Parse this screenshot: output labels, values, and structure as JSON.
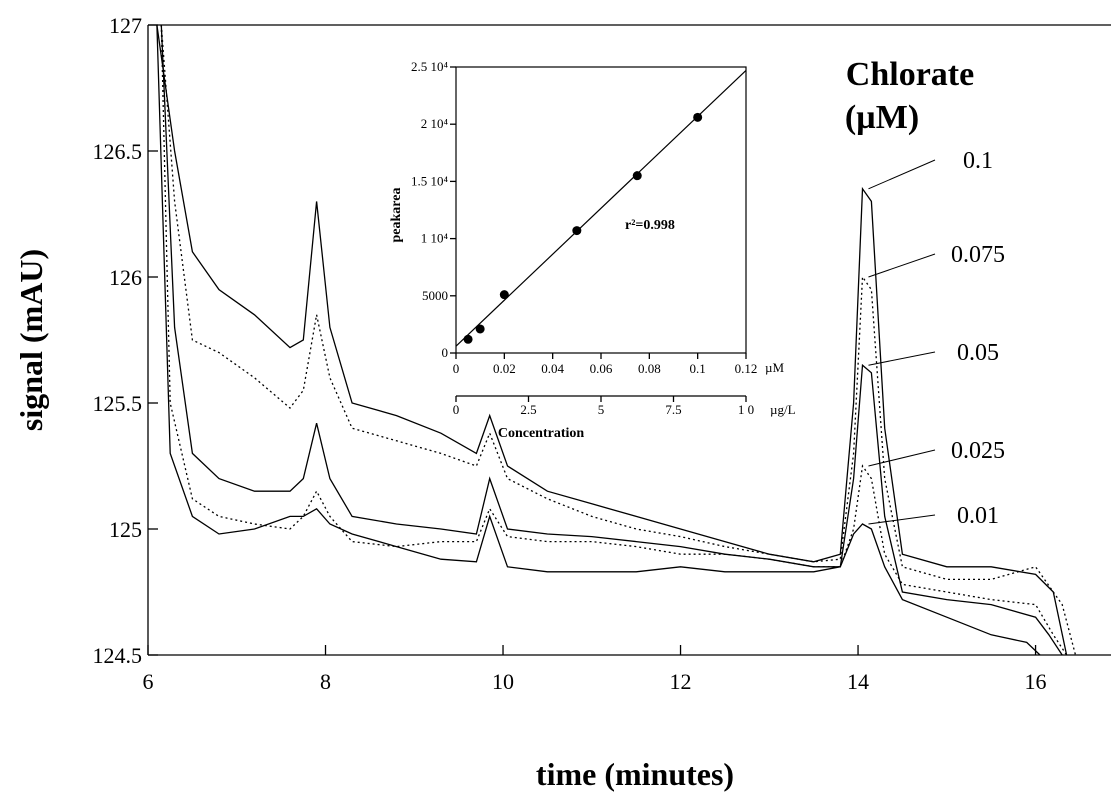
{
  "chart_data": [
    {
      "type": "line",
      "xlabel": "time (minutes)",
      "ylabel": "signal (mAU)",
      "xlim": [
        6,
        16.85
      ],
      "ylim": [
        124.5,
        127
      ],
      "x_ticks": [
        "6",
        "8",
        "10",
        "12",
        "14",
        "16"
      ],
      "y_ticks": [
        "124.5",
        "125",
        "125.5",
        "126",
        "126.5",
        "127"
      ],
      "legend_title_line1": "Chlorate",
      "legend_title_line2": "(µM)",
      "series": [
        {
          "name": "0.1",
          "style": "solid",
          "points": [
            [
              6.1,
              127
            ],
            [
              6.3,
              126.5
            ],
            [
              6.5,
              126.1
            ],
            [
              6.8,
              125.95
            ],
            [
              7.2,
              125.85
            ],
            [
              7.6,
              125.72
            ],
            [
              7.75,
              125.75
            ],
            [
              7.9,
              126.3
            ],
            [
              8.05,
              125.8
            ],
            [
              8.3,
              125.5
            ],
            [
              8.8,
              125.45
            ],
            [
              9.3,
              125.38
            ],
            [
              9.7,
              125.3
            ],
            [
              9.85,
              125.45
            ],
            [
              10.05,
              125.25
            ],
            [
              10.5,
              125.15
            ],
            [
              11,
              125.1
            ],
            [
              11.5,
              125.05
            ],
            [
              12,
              125
            ],
            [
              12.5,
              124.95
            ],
            [
              13,
              124.9
            ],
            [
              13.5,
              124.87
            ],
            [
              13.8,
              124.9
            ],
            [
              13.95,
              125.5
            ],
            [
              14.05,
              126.35
            ],
            [
              14.15,
              126.3
            ],
            [
              14.3,
              125.4
            ],
            [
              14.5,
              124.9
            ],
            [
              15,
              124.85
            ],
            [
              15.5,
              124.85
            ],
            [
              16,
              124.82
            ],
            [
              16.2,
              124.75
            ],
            [
              16.35,
              124.5
            ]
          ]
        },
        {
          "name": "0.075",
          "style": "dotted",
          "points": [
            [
              6.15,
              127
            ],
            [
              6.3,
              126.3
            ],
            [
              6.5,
              125.75
            ],
            [
              6.8,
              125.7
            ],
            [
              7.2,
              125.6
            ],
            [
              7.6,
              125.48
            ],
            [
              7.75,
              125.55
            ],
            [
              7.9,
              125.85
            ],
            [
              8.05,
              125.6
            ],
            [
              8.3,
              125.4
            ],
            [
              8.8,
              125.35
            ],
            [
              9.3,
              125.3
            ],
            [
              9.7,
              125.25
            ],
            [
              9.85,
              125.38
            ],
            [
              10.05,
              125.2
            ],
            [
              10.5,
              125.12
            ],
            [
              11,
              125.05
            ],
            [
              11.5,
              125
            ],
            [
              12,
              124.97
            ],
            [
              12.5,
              124.93
            ],
            [
              13,
              124.9
            ],
            [
              13.5,
              124.87
            ],
            [
              13.8,
              124.88
            ],
            [
              13.95,
              125.3
            ],
            [
              14.05,
              126.0
            ],
            [
              14.15,
              125.95
            ],
            [
              14.3,
              125.2
            ],
            [
              14.5,
              124.85
            ],
            [
              15,
              124.8
            ],
            [
              15.5,
              124.8
            ],
            [
              16,
              124.85
            ],
            [
              16.3,
              124.7
            ],
            [
              16.45,
              124.5
            ]
          ]
        },
        {
          "name": "0.05",
          "style": "solid",
          "points": [
            [
              6.15,
              127
            ],
            [
              6.3,
              125.8
            ],
            [
              6.5,
              125.3
            ],
            [
              6.8,
              125.2
            ],
            [
              7.2,
              125.15
            ],
            [
              7.6,
              125.15
            ],
            [
              7.75,
              125.2
            ],
            [
              7.9,
              125.42
            ],
            [
              8.05,
              125.2
            ],
            [
              8.3,
              125.05
            ],
            [
              8.8,
              125.02
            ],
            [
              9.3,
              125
            ],
            [
              9.7,
              124.98
            ],
            [
              9.85,
              125.2
            ],
            [
              10.05,
              125
            ],
            [
              10.5,
              124.98
            ],
            [
              11,
              124.97
            ],
            [
              11.5,
              124.95
            ],
            [
              12,
              124.93
            ],
            [
              12.5,
              124.9
            ],
            [
              13,
              124.88
            ],
            [
              13.5,
              124.85
            ],
            [
              13.8,
              124.85
            ],
            [
              13.95,
              125.2
            ],
            [
              14.05,
              125.65
            ],
            [
              14.15,
              125.62
            ],
            [
              14.3,
              125.05
            ],
            [
              14.5,
              124.75
            ],
            [
              15,
              124.72
            ],
            [
              15.5,
              124.7
            ],
            [
              16,
              124.65
            ],
            [
              16.15,
              124.58
            ],
            [
              16.3,
              124.5
            ]
          ]
        },
        {
          "name": "0.025",
          "style": "dotted",
          "points": [
            [
              6.15,
              127
            ],
            [
              6.25,
              125.5
            ],
            [
              6.5,
              125.12
            ],
            [
              6.8,
              125.05
            ],
            [
              7.2,
              125.02
            ],
            [
              7.6,
              125
            ],
            [
              7.75,
              125.05
            ],
            [
              7.9,
              125.15
            ],
            [
              8.05,
              125.05
            ],
            [
              8.3,
              124.95
            ],
            [
              8.8,
              124.93
            ],
            [
              9.3,
              124.95
            ],
            [
              9.7,
              124.95
            ],
            [
              9.85,
              125.08
            ],
            [
              10.05,
              124.97
            ],
            [
              10.5,
              124.95
            ],
            [
              11,
              124.95
            ],
            [
              11.5,
              124.93
            ],
            [
              12,
              124.9
            ],
            [
              12.5,
              124.9
            ],
            [
              13,
              124.88
            ],
            [
              13.5,
              124.85
            ],
            [
              13.8,
              124.85
            ],
            [
              13.95,
              125.0
            ],
            [
              14.05,
              125.25
            ],
            [
              14.15,
              125.2
            ],
            [
              14.3,
              124.9
            ],
            [
              14.5,
              124.78
            ],
            [
              15,
              124.75
            ],
            [
              15.5,
              124.72
            ],
            [
              16,
              124.7
            ],
            [
              16.2,
              124.58
            ],
            [
              16.35,
              124.5
            ]
          ]
        },
        {
          "name": "0.01",
          "style": "solid",
          "points": [
            [
              6.1,
              127
            ],
            [
              6.25,
              125.3
            ],
            [
              6.5,
              125.05
            ],
            [
              6.8,
              124.98
            ],
            [
              7.2,
              125
            ],
            [
              7.6,
              125.05
            ],
            [
              7.75,
              125.05
            ],
            [
              7.9,
              125.08
            ],
            [
              8.05,
              125.02
            ],
            [
              8.3,
              124.98
            ],
            [
              8.8,
              124.93
            ],
            [
              9.3,
              124.88
            ],
            [
              9.7,
              124.87
            ],
            [
              9.85,
              125.05
            ],
            [
              10.05,
              124.85
            ],
            [
              10.5,
              124.83
            ],
            [
              11,
              124.83
            ],
            [
              11.5,
              124.83
            ],
            [
              12,
              124.85
            ],
            [
              12.5,
              124.83
            ],
            [
              13,
              124.83
            ],
            [
              13.5,
              124.83
            ],
            [
              13.8,
              124.85
            ],
            [
              13.95,
              124.98
            ],
            [
              14.05,
              125.02
            ],
            [
              14.15,
              125.0
            ],
            [
              14.3,
              124.85
            ],
            [
              14.5,
              124.72
            ],
            [
              15,
              124.65
            ],
            [
              15.5,
              124.58
            ],
            [
              15.9,
              124.55
            ],
            [
              16.05,
              124.5
            ]
          ]
        }
      ]
    },
    {
      "type": "scatter",
      "xlabel": "Concentration",
      "ylabel": "peakarea",
      "xlim": [
        0,
        0.12
      ],
      "ylim": [
        0,
        25000
      ],
      "x_ticks_uM": [
        "0",
        "0.02",
        "0.04",
        "0.06",
        "0.08",
        "0.1",
        "0.12"
      ],
      "x_unit_uM": "µM",
      "x_ticks_ugL": [
        "0",
        "2.5",
        "5",
        "7.5",
        "1 0"
      ],
      "x_unit_ugL": "µg/L",
      "y_ticks": [
        "0",
        "5000",
        "1 10⁴",
        "1.5 10⁴",
        "2 10⁴",
        "2.5 10⁴"
      ],
      "annotation": "r²=0.998",
      "points": [
        [
          0.005,
          1200
        ],
        [
          0.01,
          2100
        ],
        [
          0.02,
          5100
        ],
        [
          0.05,
          10700
        ],
        [
          0.075,
          15500
        ],
        [
          0.1,
          20600
        ]
      ],
      "fit_line": {
        "x": [
          0,
          0.12
        ],
        "y": [
          600,
          24700
        ]
      }
    }
  ]
}
